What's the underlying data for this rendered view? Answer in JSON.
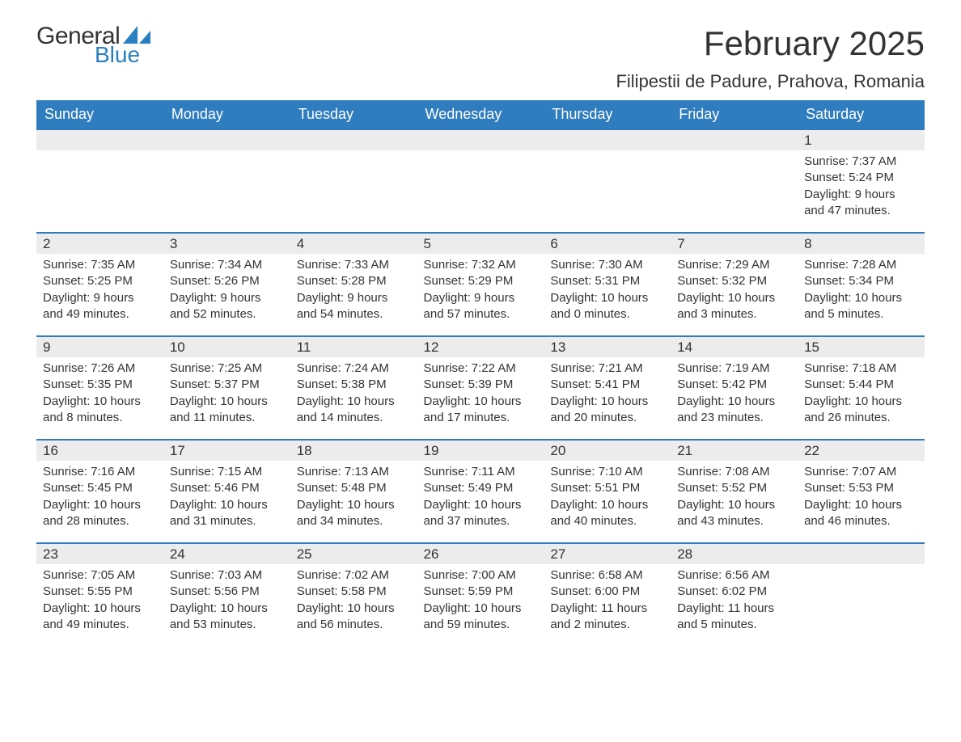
{
  "logo": {
    "text_general": "General",
    "text_blue": "Blue",
    "shape_color": "#2a7fc1"
  },
  "header": {
    "month_title": "February 2025",
    "location": "Filipestii de Padure, Prahova, Romania"
  },
  "colors": {
    "header_bg": "#2f7cbf",
    "header_text": "#ffffff",
    "daynum_bg": "#ececec",
    "daynum_border": "#2f7cbf",
    "body_text": "#333333",
    "page_bg": "#ffffff"
  },
  "typography": {
    "month_title_fontsize": 42,
    "location_fontsize": 22,
    "weekday_fontsize": 18,
    "daynum_fontsize": 17,
    "body_fontsize": 15
  },
  "weekdays": [
    "Sunday",
    "Monday",
    "Tuesday",
    "Wednesday",
    "Thursday",
    "Friday",
    "Saturday"
  ],
  "weeks": [
    [
      null,
      null,
      null,
      null,
      null,
      null,
      {
        "day": "1",
        "sunrise": "Sunrise: 7:37 AM",
        "sunset": "Sunset: 5:24 PM",
        "daylight": "Daylight: 9 hours and 47 minutes."
      }
    ],
    [
      {
        "day": "2",
        "sunrise": "Sunrise: 7:35 AM",
        "sunset": "Sunset: 5:25 PM",
        "daylight": "Daylight: 9 hours and 49 minutes."
      },
      {
        "day": "3",
        "sunrise": "Sunrise: 7:34 AM",
        "sunset": "Sunset: 5:26 PM",
        "daylight": "Daylight: 9 hours and 52 minutes."
      },
      {
        "day": "4",
        "sunrise": "Sunrise: 7:33 AM",
        "sunset": "Sunset: 5:28 PM",
        "daylight": "Daylight: 9 hours and 54 minutes."
      },
      {
        "day": "5",
        "sunrise": "Sunrise: 7:32 AM",
        "sunset": "Sunset: 5:29 PM",
        "daylight": "Daylight: 9 hours and 57 minutes."
      },
      {
        "day": "6",
        "sunrise": "Sunrise: 7:30 AM",
        "sunset": "Sunset: 5:31 PM",
        "daylight": "Daylight: 10 hours and 0 minutes."
      },
      {
        "day": "7",
        "sunrise": "Sunrise: 7:29 AM",
        "sunset": "Sunset: 5:32 PM",
        "daylight": "Daylight: 10 hours and 3 minutes."
      },
      {
        "day": "8",
        "sunrise": "Sunrise: 7:28 AM",
        "sunset": "Sunset: 5:34 PM",
        "daylight": "Daylight: 10 hours and 5 minutes."
      }
    ],
    [
      {
        "day": "9",
        "sunrise": "Sunrise: 7:26 AM",
        "sunset": "Sunset: 5:35 PM",
        "daylight": "Daylight: 10 hours and 8 minutes."
      },
      {
        "day": "10",
        "sunrise": "Sunrise: 7:25 AM",
        "sunset": "Sunset: 5:37 PM",
        "daylight": "Daylight: 10 hours and 11 minutes."
      },
      {
        "day": "11",
        "sunrise": "Sunrise: 7:24 AM",
        "sunset": "Sunset: 5:38 PM",
        "daylight": "Daylight: 10 hours and 14 minutes."
      },
      {
        "day": "12",
        "sunrise": "Sunrise: 7:22 AM",
        "sunset": "Sunset: 5:39 PM",
        "daylight": "Daylight: 10 hours and 17 minutes."
      },
      {
        "day": "13",
        "sunrise": "Sunrise: 7:21 AM",
        "sunset": "Sunset: 5:41 PM",
        "daylight": "Daylight: 10 hours and 20 minutes."
      },
      {
        "day": "14",
        "sunrise": "Sunrise: 7:19 AM",
        "sunset": "Sunset: 5:42 PM",
        "daylight": "Daylight: 10 hours and 23 minutes."
      },
      {
        "day": "15",
        "sunrise": "Sunrise: 7:18 AM",
        "sunset": "Sunset: 5:44 PM",
        "daylight": "Daylight: 10 hours and 26 minutes."
      }
    ],
    [
      {
        "day": "16",
        "sunrise": "Sunrise: 7:16 AM",
        "sunset": "Sunset: 5:45 PM",
        "daylight": "Daylight: 10 hours and 28 minutes."
      },
      {
        "day": "17",
        "sunrise": "Sunrise: 7:15 AM",
        "sunset": "Sunset: 5:46 PM",
        "daylight": "Daylight: 10 hours and 31 minutes."
      },
      {
        "day": "18",
        "sunrise": "Sunrise: 7:13 AM",
        "sunset": "Sunset: 5:48 PM",
        "daylight": "Daylight: 10 hours and 34 minutes."
      },
      {
        "day": "19",
        "sunrise": "Sunrise: 7:11 AM",
        "sunset": "Sunset: 5:49 PM",
        "daylight": "Daylight: 10 hours and 37 minutes."
      },
      {
        "day": "20",
        "sunrise": "Sunrise: 7:10 AM",
        "sunset": "Sunset: 5:51 PM",
        "daylight": "Daylight: 10 hours and 40 minutes."
      },
      {
        "day": "21",
        "sunrise": "Sunrise: 7:08 AM",
        "sunset": "Sunset: 5:52 PM",
        "daylight": "Daylight: 10 hours and 43 minutes."
      },
      {
        "day": "22",
        "sunrise": "Sunrise: 7:07 AM",
        "sunset": "Sunset: 5:53 PM",
        "daylight": "Daylight: 10 hours and 46 minutes."
      }
    ],
    [
      {
        "day": "23",
        "sunrise": "Sunrise: 7:05 AM",
        "sunset": "Sunset: 5:55 PM",
        "daylight": "Daylight: 10 hours and 49 minutes."
      },
      {
        "day": "24",
        "sunrise": "Sunrise: 7:03 AM",
        "sunset": "Sunset: 5:56 PM",
        "daylight": "Daylight: 10 hours and 53 minutes."
      },
      {
        "day": "25",
        "sunrise": "Sunrise: 7:02 AM",
        "sunset": "Sunset: 5:58 PM",
        "daylight": "Daylight: 10 hours and 56 minutes."
      },
      {
        "day": "26",
        "sunrise": "Sunrise: 7:00 AM",
        "sunset": "Sunset: 5:59 PM",
        "daylight": "Daylight: 10 hours and 59 minutes."
      },
      {
        "day": "27",
        "sunrise": "Sunrise: 6:58 AM",
        "sunset": "Sunset: 6:00 PM",
        "daylight": "Daylight: 11 hours and 2 minutes."
      },
      {
        "day": "28",
        "sunrise": "Sunrise: 6:56 AM",
        "sunset": "Sunset: 6:02 PM",
        "daylight": "Daylight: 11 hours and 5 minutes."
      },
      null
    ]
  ]
}
